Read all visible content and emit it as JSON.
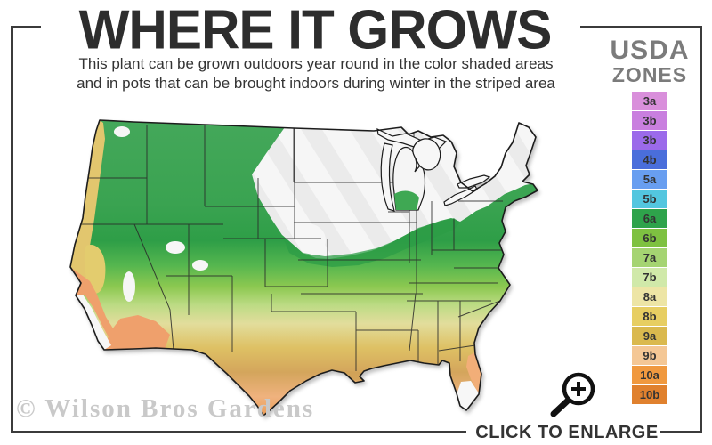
{
  "header": {
    "title": "WHERE IT GROWS",
    "subtitle_line1": "This plant can be grown outdoors year round in the color shaded areas",
    "subtitle_line2": "and in pots that can be brought indoors during winter in the striped area"
  },
  "legend": {
    "title_line1": "USDA",
    "title_line2": "ZONES",
    "zones": [
      {
        "label": "3a",
        "color": "#d98fdb"
      },
      {
        "label": "3b",
        "color": "#c97fdf"
      },
      {
        "label": "3b",
        "color": "#9b6aea"
      },
      {
        "label": "4b",
        "color": "#4a6edb"
      },
      {
        "label": "5a",
        "color": "#689ef0"
      },
      {
        "label": "5b",
        "color": "#53c6df"
      },
      {
        "label": "6a",
        "color": "#2ea34b"
      },
      {
        "label": "6b",
        "color": "#7ec141"
      },
      {
        "label": "7a",
        "color": "#a5d472"
      },
      {
        "label": "7b",
        "color": "#d0e9a9"
      },
      {
        "label": "8a",
        "color": "#ede5a5"
      },
      {
        "label": "8b",
        "color": "#e7ce62"
      },
      {
        "label": "9a",
        "color": "#dab94e"
      },
      {
        "label": "9b",
        "color": "#f4c795"
      },
      {
        "label": "10a",
        "color": "#f0993f"
      },
      {
        "label": "10b",
        "color": "#e0812e"
      }
    ]
  },
  "map": {
    "description": "Contiguous USA hardiness zone map, color shaded south and west, striped white north",
    "stripe_base_color": "#f6f6f6",
    "stripe_band_color": "#ebebeb",
    "outline_color": "#1c1c1c"
  },
  "footer": {
    "watermark": "© Wilson Bros Gardens",
    "cta": "CLICK TO ENLARGE",
    "icon": "magnifier-plus-icon"
  }
}
